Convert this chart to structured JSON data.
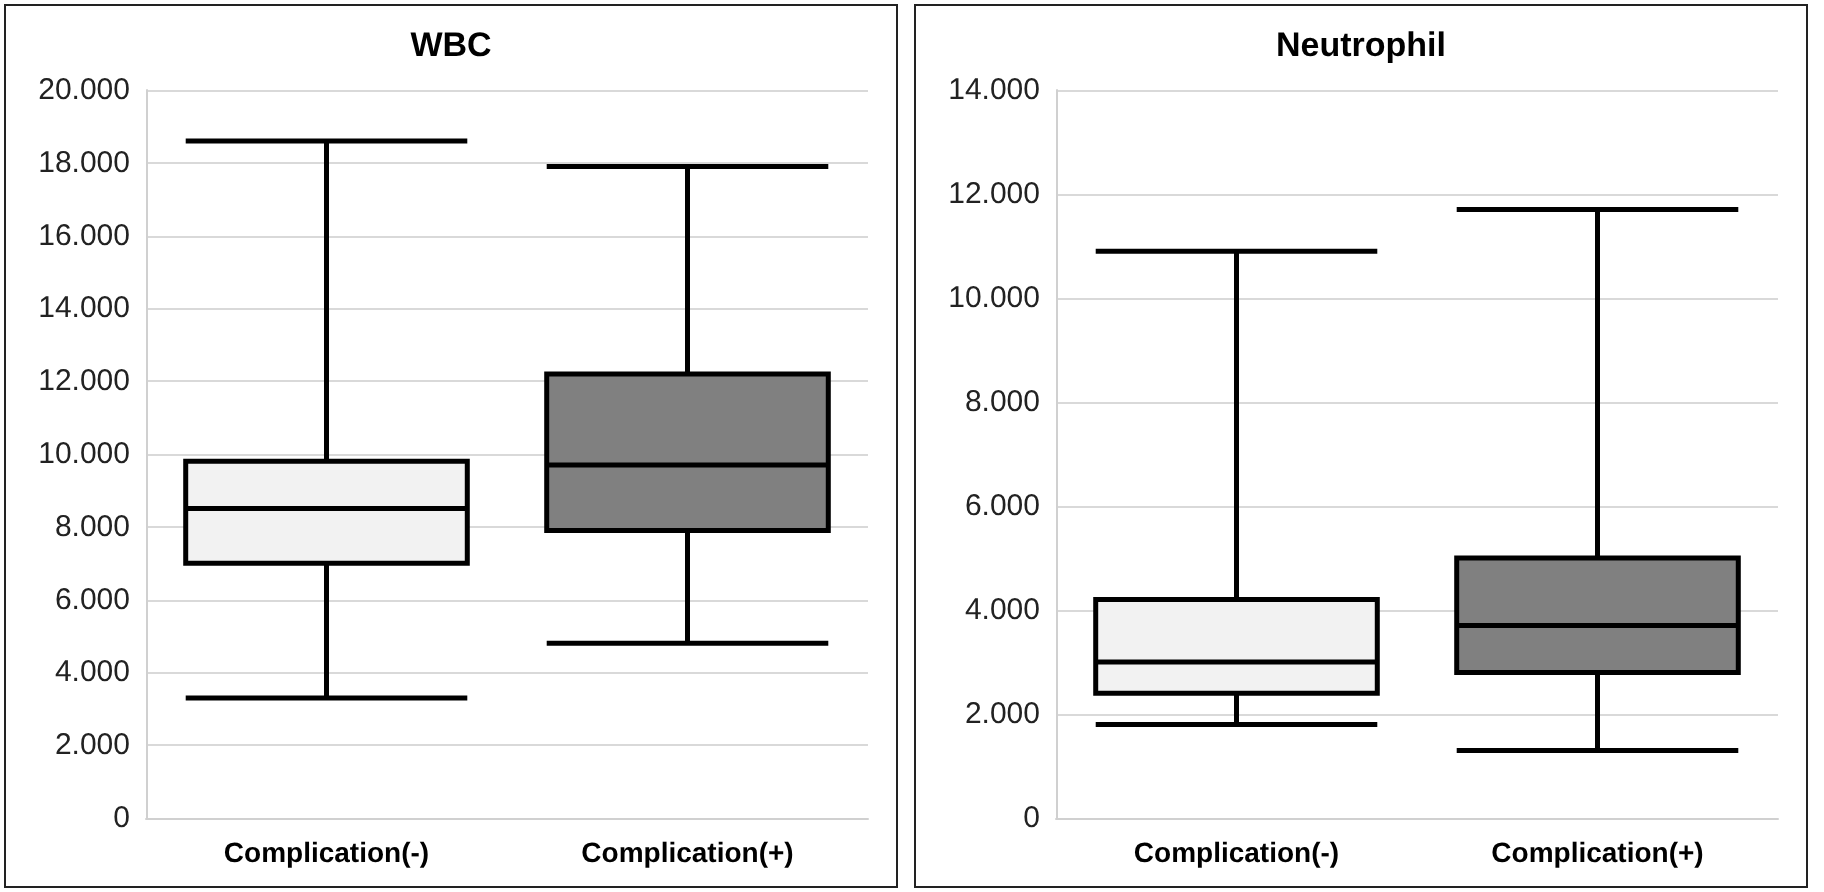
{
  "chart_data": [
    {
      "type": "box",
      "title": "WBC",
      "categories": [
        "Complication(-)",
        "Complication(+)"
      ],
      "boxes": [
        {
          "low": 3300,
          "q1": 7000,
          "median": 8500,
          "q3": 9800,
          "high": 18600
        },
        {
          "low": 4800,
          "q1": 7900,
          "median": 9700,
          "q3": 12200,
          "high": 17900
        }
      ],
      "colors": [
        "#f2f2f2",
        "#808080"
      ],
      "ylim": [
        0,
        20000
      ],
      "yticks": [
        {
          "value": 0,
          "label": "0"
        },
        {
          "value": 2000,
          "label": "2.000"
        },
        {
          "value": 4000,
          "label": "4.000"
        },
        {
          "value": 6000,
          "label": "6.000"
        },
        {
          "value": 8000,
          "label": "8.000"
        },
        {
          "value": 10000,
          "label": "10.000"
        },
        {
          "value": 12000,
          "label": "12.000"
        },
        {
          "value": 14000,
          "label": "14.000"
        },
        {
          "value": 16000,
          "label": "16.000"
        },
        {
          "value": 18000,
          "label": "18.000"
        },
        {
          "value": 20000,
          "label": "20.000"
        }
      ],
      "grid": "y"
    },
    {
      "type": "box",
      "title": "Neutrophil",
      "categories": [
        "Complication(-)",
        "Complication(+)"
      ],
      "boxes": [
        {
          "low": 1800,
          "q1": 2400,
          "median": 3000,
          "q3": 4200,
          "high": 10900
        },
        {
          "low": 1300,
          "q1": 2800,
          "median": 3700,
          "q3": 5000,
          "high": 11700
        }
      ],
      "colors": [
        "#f2f2f2",
        "#808080"
      ],
      "ylim": [
        0,
        14000
      ],
      "yticks": [
        {
          "value": 0,
          "label": "0"
        },
        {
          "value": 2000,
          "label": "2.000"
        },
        {
          "value": 4000,
          "label": "4.000"
        },
        {
          "value": 6000,
          "label": "6.000"
        },
        {
          "value": 8000,
          "label": "8.000"
        },
        {
          "value": 10000,
          "label": "10.000"
        },
        {
          "value": 12000,
          "label": "12.000"
        },
        {
          "value": 14000,
          "label": "14.000"
        }
      ],
      "grid": "y"
    }
  ]
}
